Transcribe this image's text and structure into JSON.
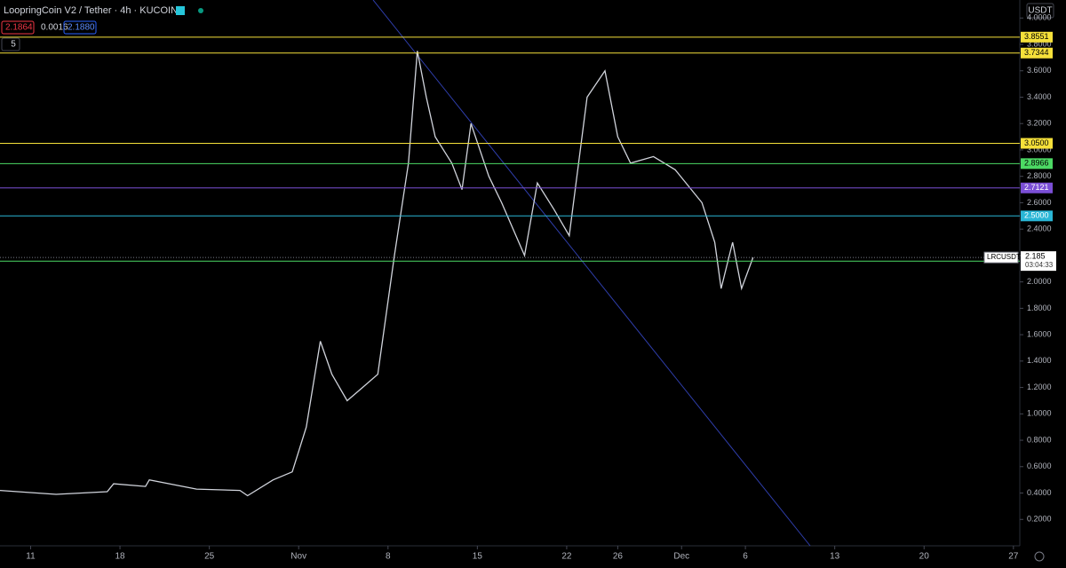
{
  "header": {
    "title": "LoopringCoin V2 / Tether · 4h · KUCOIN",
    "bid": "2.1864",
    "spread": "0.0016",
    "ask": "2.1880",
    "indicators": "5",
    "currency": "USDT"
  },
  "chart_data": {
    "type": "line",
    "color": "#d1d4dc",
    "x": [
      -2.4,
      2,
      6,
      6.5,
      9,
      9.3,
      13,
      16.4,
      17,
      19,
      20.5,
      21.6,
      22.7,
      23.6,
      24.8,
      26,
      27.2,
      28.5,
      29.6,
      30.3,
      31,
      31.7,
      33,
      33.8,
      34.5,
      35.9,
      36.9,
      38.7,
      39.7,
      41,
      42.2,
      43.6,
      45,
      46,
      47,
      48.8,
      50.5,
      52.6,
      53.6,
      54.1,
      55,
      55.7,
      56.6
    ],
    "series": [
      {
        "name": "LRCUSDT",
        "color": "#d1d4dc",
        "values": [
          0.42,
          0.39,
          0.41,
          0.47,
          0.45,
          0.5,
          0.43,
          0.42,
          0.38,
          0.5,
          0.56,
          0.9,
          1.55,
          1.3,
          1.1,
          1.2,
          1.3,
          2.2,
          2.9,
          3.75,
          3.4,
          3.1,
          2.9,
          2.7,
          3.2,
          2.8,
          2.6,
          2.2,
          2.75,
          2.55,
          2.35,
          3.4,
          3.6,
          3.1,
          2.9,
          2.95,
          2.85,
          2.6,
          2.3,
          1.95,
          2.3,
          1.95,
          2.185
        ]
      }
    ],
    "levels": [
      {
        "value": 3.8551,
        "color": "#f5e03a"
      },
      {
        "value": 3.7344,
        "color": "#f5e03a"
      },
      {
        "value": {
          "value": 3.05,
          "label": "3.0500"
        },
        "color": "#f5e03a"
      },
      {
        "value": 2.8966,
        "color": "#4cd964"
      },
      {
        "value": 2.7121,
        "color": "#7b4fd6"
      },
      {
        "value": {
          "value": 2.5,
          "label": "2.5000"
        },
        "color": "#2ab6d6"
      },
      {
        "value": 2.1575,
        "color": "#4cd964"
      }
    ],
    "last_price": 2.185,
    "symbol": "LRCUSDT",
    "countdown": "03:04:33",
    "xlim": [
      -2.4,
      77.5
    ],
    "ylim": [
      0.0,
      4.1364
    ],
    "xticks": [
      {
        "value": 0,
        "label": "11"
      },
      {
        "value": 7,
        "label": "18"
      },
      {
        "value": 14,
        "label": "25"
      },
      {
        "value": 21,
        "label": "Nov"
      },
      {
        "value": 28,
        "label": "8"
      },
      {
        "value": 35,
        "label": "15"
      },
      {
        "value": 42,
        "label": "22"
      },
      {
        "value": 46,
        "label": "26"
      },
      {
        "value": 51,
        "label": "Dec"
      },
      {
        "value": 56,
        "label": "6"
      },
      {
        "value": 63,
        "label": "13"
      },
      {
        "value": 70,
        "label": "20"
      },
      {
        "value": 77,
        "label": "27"
      }
    ],
    "yticks": [
      {
        "value": 0.2,
        "label": "0.2000"
      },
      {
        "value": 0.4,
        "label": "0.4000"
      },
      {
        "value": 0.6,
        "label": "0.6000"
      },
      {
        "value": 0.8,
        "label": "0.8000"
      },
      {
        "value": 1.0,
        "label": "1.0000"
      },
      {
        "value": 1.2,
        "label": "1.2000"
      },
      {
        "value": 1.4,
        "label": "1.4000"
      },
      {
        "value": 1.6,
        "label": "1.6000"
      },
      {
        "value": 1.8,
        "label": "1.8000"
      },
      {
        "value": 2.0,
        "label": "2.0000"
      },
      {
        "value": 2.2,
        "label": "2.2000"
      },
      {
        "value": 2.4,
        "label": "2.4000"
      },
      {
        "value": 2.6,
        "label": "2.6000"
      },
      {
        "value": 2.8,
        "label": "2.8000"
      },
      {
        "value": 3.0,
        "label": "3.0000"
      },
      {
        "value": 3.2,
        "label": "3.2000"
      },
      {
        "value": 3.4,
        "label": "3.4000"
      },
      {
        "value": 3.6,
        "label": "3.6000"
      },
      {
        "value": 3.8,
        "label": "3.8000"
      },
      {
        "value": 4.0,
        "label": "4.0000"
      }
    ]
  }
}
